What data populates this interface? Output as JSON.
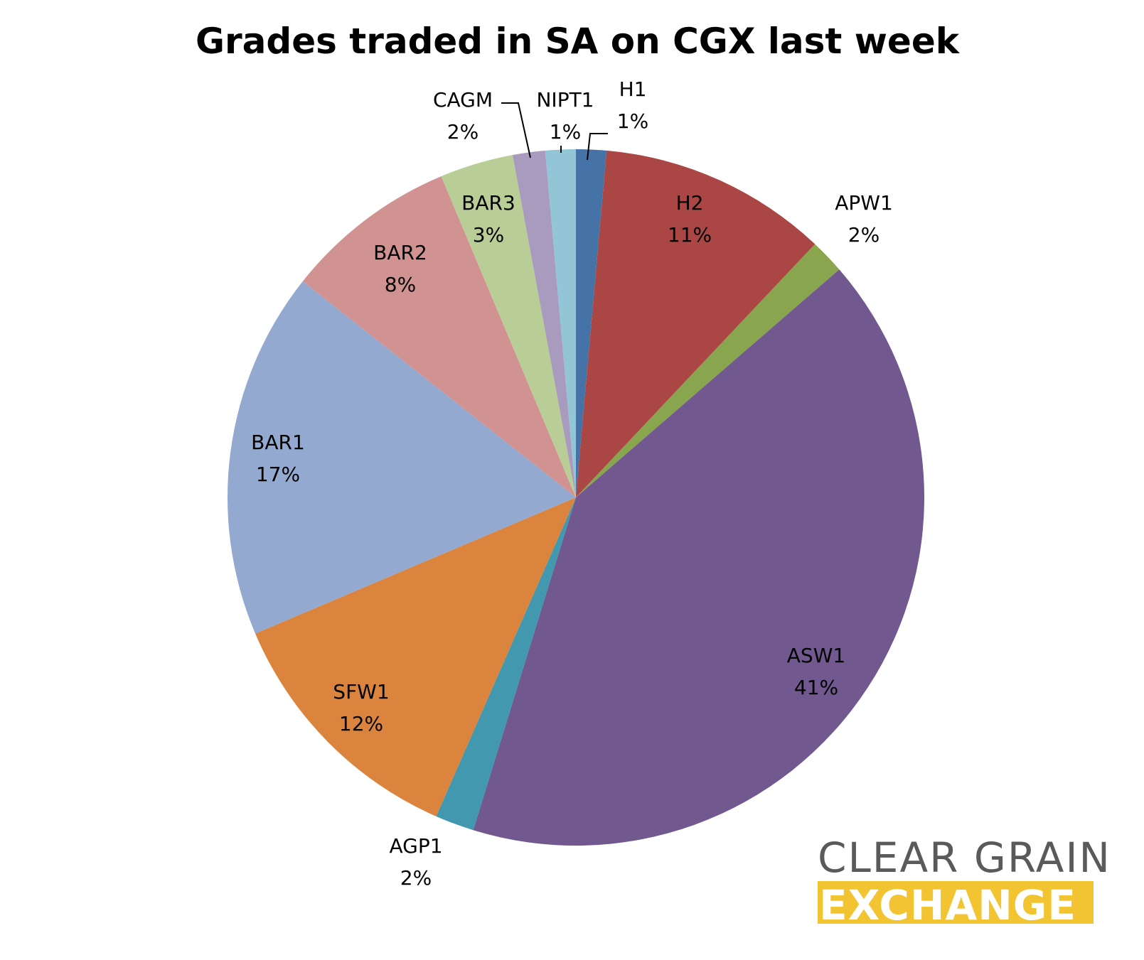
{
  "chart_data": {
    "type": "pie",
    "title": "Grades traded in SA on CGX last week",
    "slices": [
      {
        "label": "H1",
        "value": 1.4,
        "pct_label": "1%",
        "color": "#4572a7"
      },
      {
        "label": "H2",
        "value": 10.6,
        "pct_label": "11%",
        "color": "#aa4643"
      },
      {
        "label": "APW1",
        "value": 1.6,
        "pct_label": "2%",
        "color": "#89a54e"
      },
      {
        "label": "ASW1",
        "value": 41.0,
        "pct_label": "41%",
        "color": "#71588f"
      },
      {
        "label": "AGP1",
        "value": 1.8,
        "pct_label": "2%",
        "color": "#4198af"
      },
      {
        "label": "SFW1",
        "value": 12.0,
        "pct_label": "12%",
        "color": "#db843d"
      },
      {
        "label": "BAR1",
        "value": 17.0,
        "pct_label": "17%",
        "color": "#93a9cf"
      },
      {
        "label": "BAR2",
        "value": 8.0,
        "pct_label": "8%",
        "color": "#d19392"
      },
      {
        "label": "BAR3",
        "value": 3.4,
        "pct_label": "3%",
        "color": "#b9cd96"
      },
      {
        "label": "CAGM",
        "value": 1.5,
        "pct_label": "2%",
        "color": "#a99bbd"
      },
      {
        "label": "NIPT1",
        "value": 1.4,
        "pct_label": "1%",
        "color": "#92c5d5"
      }
    ]
  },
  "logo": {
    "line1": "CLEAR GRAIN",
    "line2": "EXCHANGE",
    "accent_color": "#f2c431"
  }
}
